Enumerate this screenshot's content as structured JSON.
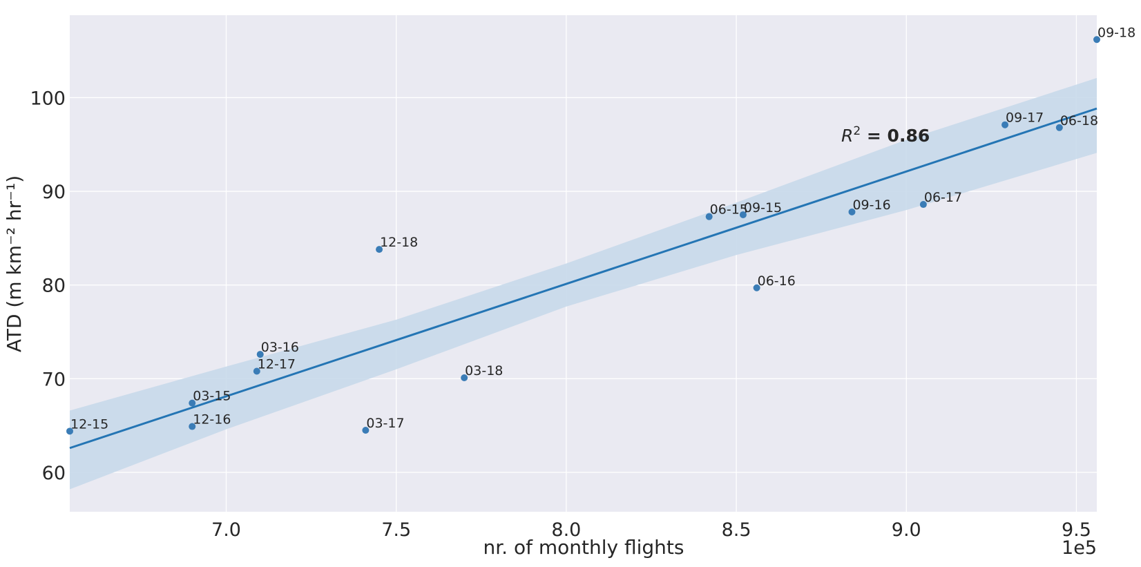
{
  "chart_data": {
    "type": "scatter",
    "xlabel": "nr. of monthly flights",
    "ylabel": "ATD (m km⁻² hr⁻¹)",
    "x_offset_label": "1e5",
    "xlim": [
      6.54,
      9.56
    ],
    "ylim": [
      55.8,
      108.8
    ],
    "x_ticks": [
      7.0,
      7.5,
      8.0,
      8.5,
      9.0,
      9.5
    ],
    "x_tick_labels": [
      "7.0",
      "7.5",
      "8.0",
      "8.5",
      "9.0",
      "9.5"
    ],
    "y_ticks": [
      60,
      70,
      80,
      90,
      100
    ],
    "y_tick_labels": [
      "60",
      "70",
      "80",
      "90",
      "100"
    ],
    "grid": true,
    "annotation": {
      "prefix": "R",
      "sup": "2",
      "suffix": " = 0.86"
    },
    "points": [
      {
        "label": "12-15",
        "x": 6.54,
        "y": 64.4
      },
      {
        "label": "03-15",
        "x": 6.9,
        "y": 67.4
      },
      {
        "label": "12-16",
        "x": 6.9,
        "y": 64.9
      },
      {
        "label": "12-17",
        "x": 7.09,
        "y": 70.8
      },
      {
        "label": "03-16",
        "x": 7.1,
        "y": 72.6
      },
      {
        "label": "03-17",
        "x": 7.41,
        "y": 64.5
      },
      {
        "label": "12-18",
        "x": 7.45,
        "y": 83.8
      },
      {
        "label": "03-18",
        "x": 7.7,
        "y": 70.1
      },
      {
        "label": "06-15",
        "x": 8.42,
        "y": 87.3
      },
      {
        "label": "09-15",
        "x": 8.52,
        "y": 87.5
      },
      {
        "label": "06-16",
        "x": 8.56,
        "y": 79.7
      },
      {
        "label": "09-16",
        "x": 8.84,
        "y": 87.8
      },
      {
        "label": "06-17",
        "x": 9.05,
        "y": 88.6
      },
      {
        "label": "09-17",
        "x": 9.29,
        "y": 97.1
      },
      {
        "label": "06-18",
        "x": 9.45,
        "y": 96.8
      },
      {
        "label": "09-18",
        "x": 9.56,
        "y": 106.2
      }
    ],
    "regression": {
      "slope": 12.0,
      "intercept": -15.88
    },
    "confidence_band": [
      {
        "x": 6.54,
        "lower": 58.2,
        "upper": 66.6
      },
      {
        "x": 7.0,
        "lower": 64.6,
        "upper": 71.3
      },
      {
        "x": 7.5,
        "lower": 71.0,
        "upper": 76.3
      },
      {
        "x": 8.0,
        "lower": 77.7,
        "upper": 82.3
      },
      {
        "x": 8.5,
        "lower": 83.2,
        "upper": 88.8
      },
      {
        "x": 9.0,
        "lower": 88.0,
        "upper": 95.5
      },
      {
        "x": 9.56,
        "lower": 94.1,
        "upper": 102.1
      }
    ],
    "colors": {
      "background": "#eaeaf2",
      "grid": "#ffffff",
      "line": "#2475b4",
      "band": "#c8d9ea",
      "point": "#3a7cb6"
    }
  }
}
